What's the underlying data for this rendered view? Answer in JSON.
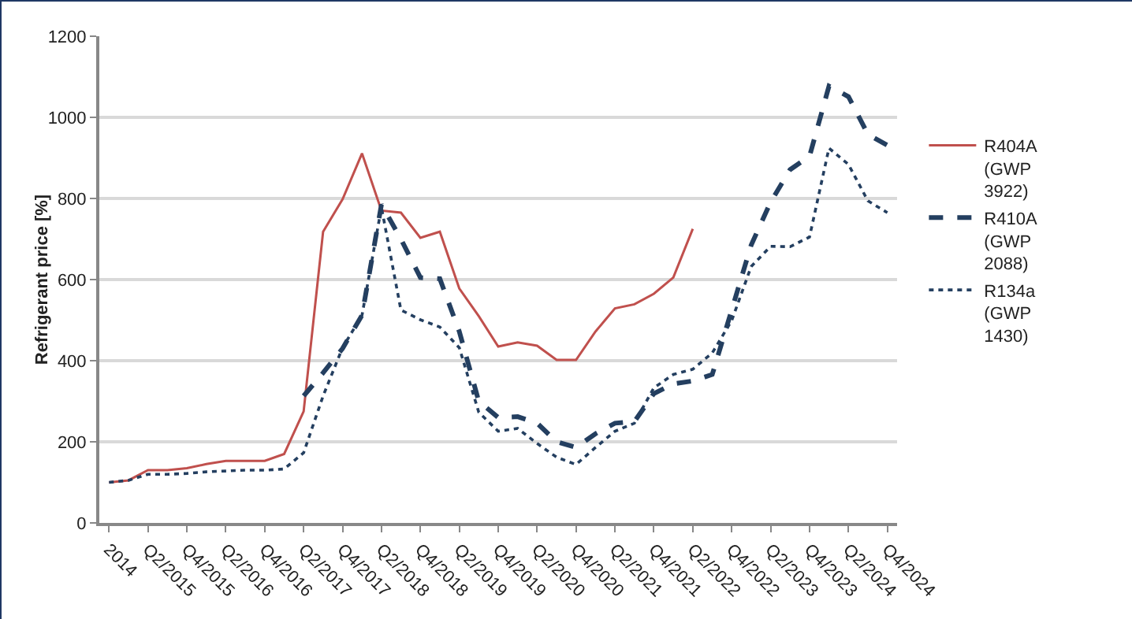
{
  "chart_data": {
    "type": "line",
    "ylabel": "Refrigerant price [%]",
    "categories": [
      "2014",
      null,
      "Q2/2015",
      null,
      "Q4/2015",
      null,
      "Q2/2016",
      null,
      "Q4/2016",
      null,
      "Q2/2017",
      null,
      "Q4/2017",
      null,
      "Q2/2018",
      null,
      "Q4/2018",
      null,
      "Q2/2019",
      null,
      "Q4/2019",
      null,
      "Q2/2020",
      null,
      "Q4/2020",
      null,
      "Q2/2021",
      null,
      "Q4/2021",
      null,
      "Q2/2022",
      null,
      "Q4/2022",
      null,
      "Q2/2023",
      null,
      "Q4/2023",
      null,
      "Q2/2024",
      null,
      "Q4/2024"
    ],
    "series": [
      {
        "name": "R404A (GWP 3922)",
        "color": "#c0504d",
        "line_style": "solid",
        "values": [
          100,
          105,
          130,
          130,
          135,
          145,
          153,
          153,
          153,
          170,
          275,
          718,
          798,
          911,
          770,
          765,
          703,
          718,
          578,
          510,
          435,
          445,
          437,
          402,
          402,
          472,
          529,
          539,
          565,
          605,
          725,
          null,
          null,
          null,
          null,
          null,
          null,
          null,
          null,
          null,
          null
        ]
      },
      {
        "name": "R410A (GWP 2088)",
        "color": "#243f60",
        "line_style": "dashed",
        "values": [
          null,
          null,
          null,
          null,
          null,
          null,
          null,
          null,
          null,
          null,
          313,
          370,
          430,
          512,
          785,
          700,
          605,
          602,
          472,
          300,
          260,
          262,
          246,
          200,
          186,
          220,
          246,
          250,
          319,
          343,
          350,
          366,
          525,
          685,
          791,
          871,
          904,
          1077,
          1051,
          958,
          931
        ]
      },
      {
        "name": "R134a (GWP 1430)",
        "color": "#243f60",
        "line_style": "dotted",
        "values": [
          100,
          105,
          120,
          120,
          122,
          126,
          128,
          130,
          130,
          133,
          173,
          313,
          432,
          512,
          778,
          525,
          501,
          483,
          432,
          273,
          226,
          233,
          196,
          162,
          144,
          186,
          226,
          246,
          333,
          366,
          379,
          419,
          499,
          632,
          682,
          681,
          705,
          924,
          884,
          794,
          765
        ]
      }
    ],
    "ylim": [
      0,
      1200
    ],
    "yticks": [
      0,
      200,
      400,
      600,
      800,
      1000,
      1200
    ],
    "grid": "y",
    "legend": "right"
  }
}
